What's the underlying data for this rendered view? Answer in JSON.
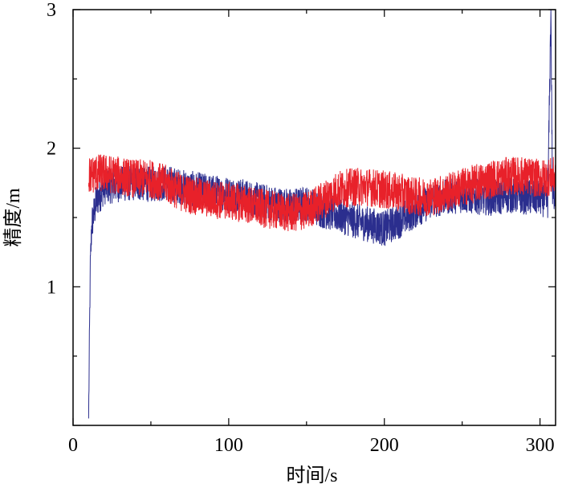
{
  "chart_data": {
    "type": "line",
    "title": "",
    "xlabel": "时间/s",
    "ylabel": "精度/m",
    "xlim": [
      0,
      310
    ],
    "ylim": [
      0,
      3
    ],
    "x_ticks": [
      0,
      100,
      200,
      300
    ],
    "y_ticks": [
      1,
      2,
      3
    ],
    "grid": false,
    "legend": "none",
    "series": [
      {
        "color": "#2b2e8e",
        "x": [
          10,
          11,
          12,
          15,
          20,
          30,
          40,
          50,
          60,
          70,
          80,
          90,
          100,
          110,
          120,
          130,
          140,
          150,
          160,
          170,
          180,
          190,
          200,
          210,
          220,
          230,
          240,
          250,
          260,
          270,
          280,
          290,
          300,
          305,
          307,
          308,
          310
        ],
        "values": [
          0.05,
          1.1,
          1.45,
          1.62,
          1.72,
          1.74,
          1.75,
          1.74,
          1.75,
          1.72,
          1.7,
          1.68,
          1.67,
          1.65,
          1.62,
          1.6,
          1.58,
          1.6,
          1.55,
          1.52,
          1.48,
          1.45,
          1.42,
          1.48,
          1.55,
          1.62,
          1.65,
          1.66,
          1.65,
          1.64,
          1.66,
          1.65,
          1.64,
          1.62,
          3.0,
          1.65,
          1.7
        ],
        "noise": 0.13
      },
      {
        "color": "#e8212a",
        "x": [
          10,
          15,
          20,
          30,
          40,
          50,
          60,
          70,
          80,
          90,
          100,
          110,
          120,
          130,
          140,
          150,
          160,
          170,
          180,
          190,
          200,
          210,
          220,
          230,
          240,
          250,
          260,
          270,
          280,
          290,
          300,
          310
        ],
        "values": [
          1.8,
          1.82,
          1.82,
          1.8,
          1.78,
          1.78,
          1.74,
          1.68,
          1.65,
          1.63,
          1.62,
          1.6,
          1.57,
          1.55,
          1.53,
          1.55,
          1.62,
          1.7,
          1.72,
          1.72,
          1.7,
          1.68,
          1.65,
          1.65,
          1.68,
          1.72,
          1.75,
          1.78,
          1.8,
          1.8,
          1.78,
          1.8
        ],
        "noise": 0.14
      }
    ]
  }
}
